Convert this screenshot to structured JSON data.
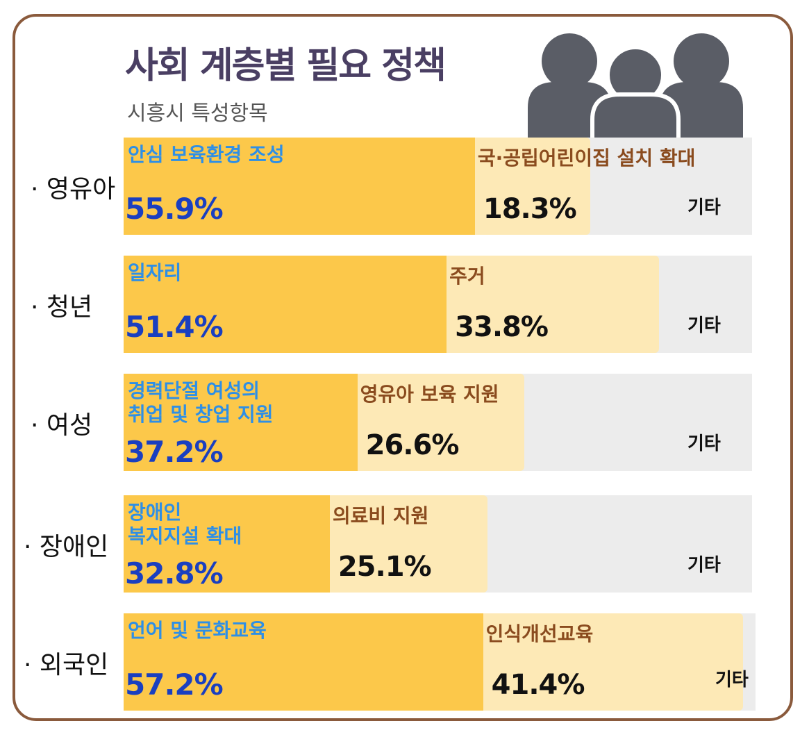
{
  "chart_data": {
    "type": "bar",
    "orientation": "horizontal-stacked",
    "title": "사회 계층별 필요 정책",
    "subtitle": "시흥시 특성항목",
    "categories": [
      "· 영유아",
      "· 청년",
      "· 여성",
      "· 장애인",
      "· 외국인"
    ],
    "rows": [
      {
        "label": "· 영유아",
        "first_label": "안심 보육환경 조성",
        "first_value": 55.9,
        "first_text": "55.9%",
        "second_label": "국·공립어린이집 설치 확대",
        "second_value": 18.3,
        "second_text": "18.3%",
        "other_label": "기타"
      },
      {
        "label": "· 청년",
        "first_label": "일자리",
        "first_value": 51.4,
        "first_text": "51.4%",
        "second_label": "주거",
        "second_value": 33.8,
        "second_text": "33.8%",
        "other_label": "기타"
      },
      {
        "label": "· 여성",
        "first_label": "경력단절 여성의\n취업 및 창업 지원",
        "first_value": 37.2,
        "first_text": "37.2%",
        "second_label": "영유아 보육 지원",
        "second_value": 26.6,
        "second_text": "26.6%",
        "other_label": "기타"
      },
      {
        "label": "· 장애인",
        "first_label": "장애인\n복지지설 확대",
        "first_value": 32.8,
        "first_text": "32.8%",
        "second_label": "의료비 지원",
        "second_value": 25.1,
        "second_text": "25.1%",
        "other_label": "기타"
      },
      {
        "label": "· 외국인",
        "first_label": "언어 및 문화교육",
        "first_value": 57.2,
        "first_text": "57.2%",
        "second_label": "인식개선교육",
        "second_value": 41.4,
        "second_text": "41.4%",
        "other_label": "기타"
      }
    ],
    "xlim": [
      0,
      100
    ],
    "colors": {
      "first": "#fcc84a",
      "second": "#fde9b6",
      "other": "#ececec",
      "first_label": "#2e8fe6",
      "first_pct": "#1a3fc0",
      "second_label": "#8a4b1e",
      "title": "#4a3f63",
      "frame": "#8a5a3c",
      "icon": "#5a5d66"
    }
  },
  "icon": "people-group-icon"
}
